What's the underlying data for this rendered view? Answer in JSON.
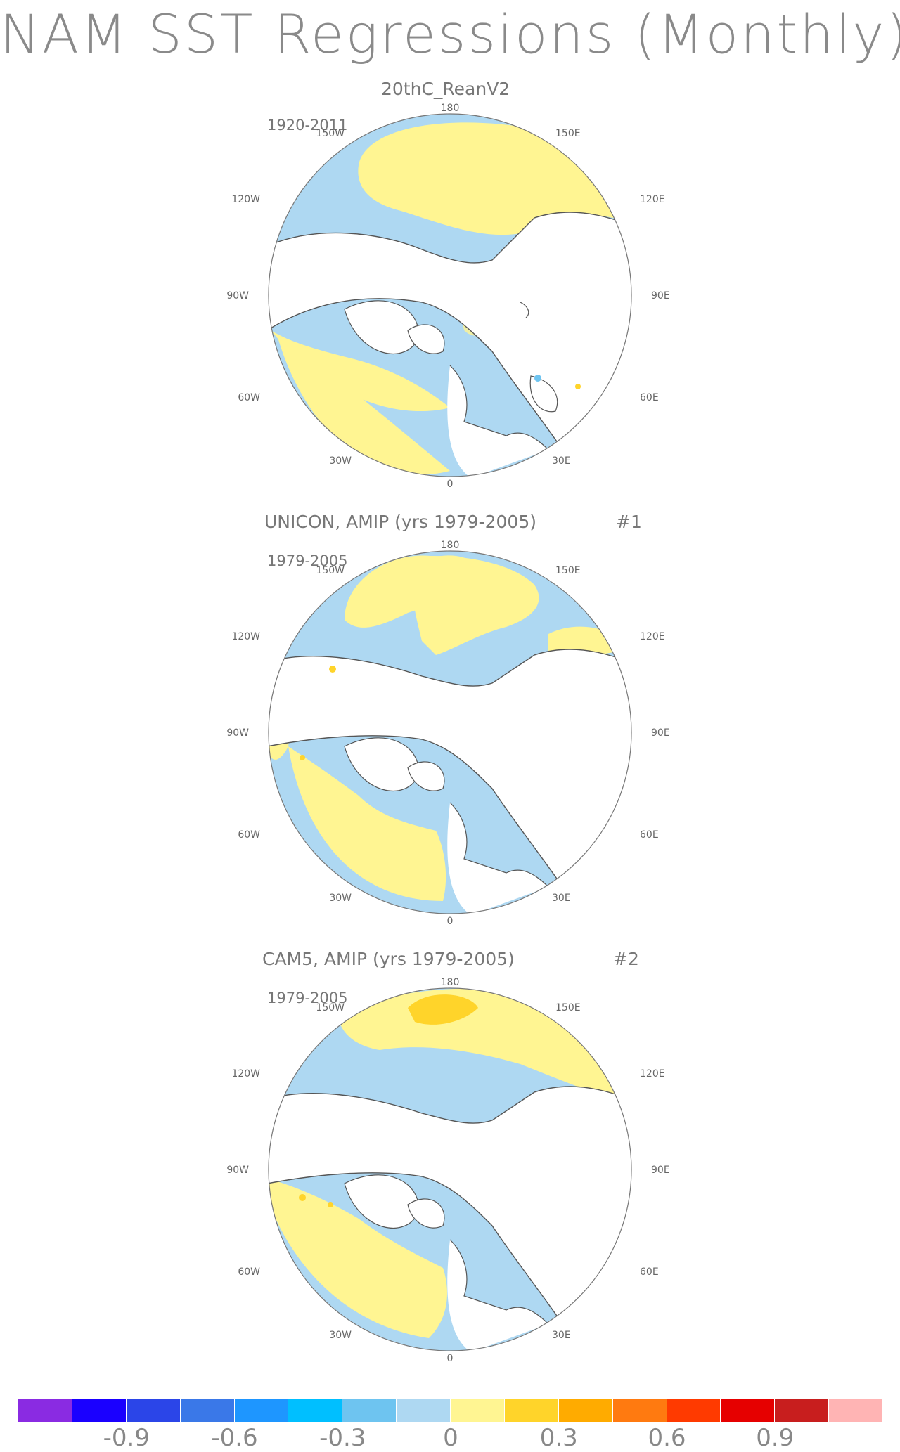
{
  "title": "NAM SST Regressions (Monthly)",
  "panels": [
    {
      "title": "20thC_ReanV2",
      "number": "",
      "period": "1920-2011"
    },
    {
      "title": "UNICON, AMIP (yrs 1979-2005)",
      "number": "#1",
      "period": "1979-2005"
    },
    {
      "title": "CAM5, AMIP (yrs 1979-2005)",
      "number": "#2",
      "period": "1979-2005"
    }
  ],
  "lon_labels": {
    "top": "180",
    "bottom": "0",
    "upper_left": "150W",
    "upper_right": "150E",
    "mid_upper_left": "120W",
    "mid_upper_right": "120E",
    "left": "90W",
    "right": "90E",
    "mid_lower_left": "60W",
    "mid_lower_right": "60E",
    "lower_left": "30W",
    "lower_right": "30E"
  },
  "legend": {
    "colors": [
      "#8a2be2",
      "#1a00ff",
      "#2b45e8",
      "#3a78e8",
      "#1e96ff",
      "#00bfff",
      "#6ec4f0",
      "#aed8f2",
      "#fff592",
      "#ffd42a",
      "#ffab00",
      "#ff7a10",
      "#ff3a00",
      "#e60000",
      "#c81e1e",
      "#ffb4b4"
    ],
    "tick_labels": [
      "-0.9",
      "-0.6",
      "-0.3",
      "0",
      "0.3",
      "0.6",
      "0.9"
    ]
  },
  "colors": {
    "positive_weak": "#fff592",
    "negative_weak": "#aed8f2",
    "positive_mid": "#ffd42a",
    "negative_mid": "#6ec4f0",
    "land": "#ffffff",
    "coast": "#555555"
  }
}
